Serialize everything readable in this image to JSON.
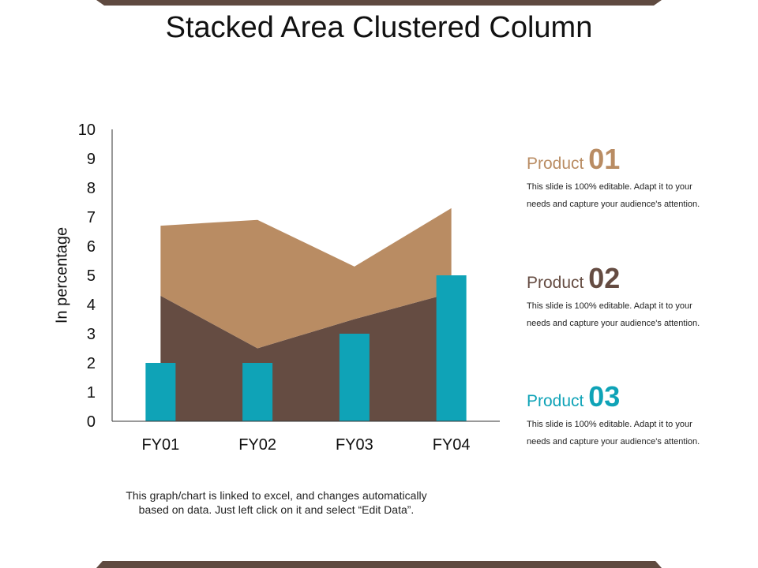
{
  "title": "Stacked Area Clustered Column",
  "footnote_line1": "This graph/chart is linked to excel, and changes automatically",
  "footnote_line2": "based on data. Just left click on it and select “Edit Data”.",
  "colors": {
    "accent": "#5f4a40",
    "product01": "#b98c63",
    "product02": "#654c42",
    "product03": "#0fa3b7"
  },
  "legend": [
    {
      "word": "Product",
      "num": "01",
      "color": "#b98c63",
      "desc1": "This slide is 100% editable. Adapt it to your",
      "desc2": "needs and capture your audience's attention."
    },
    {
      "word": "Product",
      "num": "02",
      "color": "#654c42",
      "desc1": "This slide is 100% editable. Adapt it to your",
      "desc2": "needs and capture your audience's attention."
    },
    {
      "word": "Product",
      "num": "03",
      "color": "#0fa3b7",
      "desc1": "This slide is 100% editable. Adapt it to your",
      "desc2": "needs and capture your audience's attention."
    }
  ],
  "chart_data": {
    "type": "bar",
    "title": "",
    "xlabel": "",
    "ylabel": "In percentage",
    "categories": [
      "FY01",
      "FY02",
      "FY03",
      "FY04"
    ],
    "ylim": [
      0,
      10
    ],
    "yticks": [
      0,
      1,
      2,
      3,
      4,
      5,
      6,
      7,
      8,
      9,
      10
    ],
    "grid": false,
    "legend": "right",
    "series": [
      {
        "type": "area",
        "color": "#654c42",
        "values": [
          4.3,
          2.5,
          3.5,
          4.4
        ]
      },
      {
        "type": "area",
        "color": "#b98c63",
        "values": [
          2.4,
          4.4,
          1.8,
          2.9
        ]
      },
      {
        "type": "column",
        "color": "#0fa3b7",
        "values": [
          2,
          2,
          3,
          5
        ]
      }
    ]
  }
}
